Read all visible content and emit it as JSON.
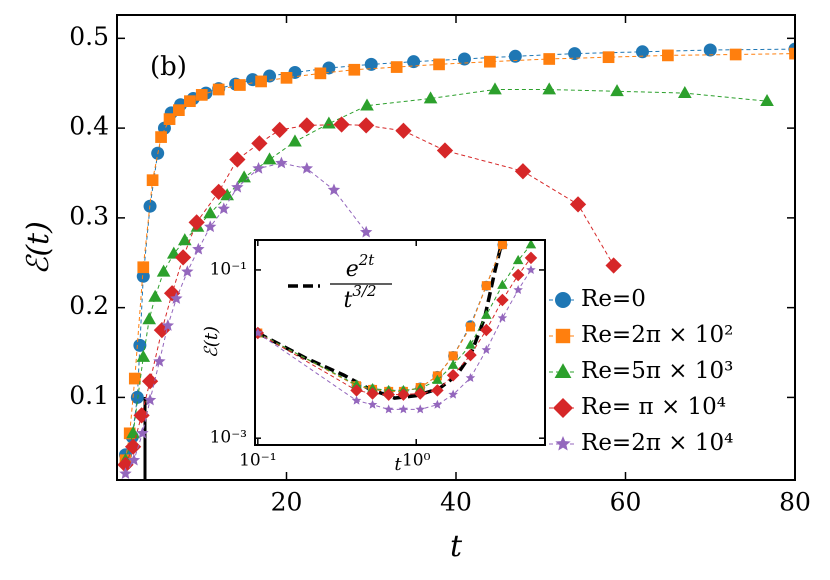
{
  "chart_data": [
    {
      "type": "line",
      "panel_label": "(b)",
      "x_label": "t",
      "y_label": "ℰ(t)",
      "xlim": [
        0,
        80
      ],
      "ylim": [
        0.008,
        0.526
      ],
      "xticks": [
        20,
        40,
        60,
        80
      ],
      "yticks": [
        0.1,
        0.2,
        0.3,
        0.4,
        0.5
      ],
      "legend": "lower right",
      "series": [
        {
          "name": "Re=0",
          "color": "#1f77b4",
          "marker": "circle",
          "x": [
            1,
            1.8,
            2.4,
            2.7,
            3.1,
            3.9,
            4.8,
            5.6,
            6.4,
            7.5,
            9,
            10.5,
            12,
            14,
            16,
            18,
            21,
            25,
            30,
            35,
            41,
            47,
            54,
            62,
            70,
            80
          ],
          "values": [
            0.036,
            0.056,
            0.1,
            0.158,
            0.235,
            0.313,
            0.372,
            0.4,
            0.417,
            0.426,
            0.433,
            0.439,
            0.444,
            0.449,
            0.454,
            0.458,
            0.462,
            0.467,
            0.471,
            0.474,
            0.477,
            0.48,
            0.483,
            0.485,
            0.487,
            0.488
          ]
        },
        {
          "name": "Re=2π × 10²",
          "color": "#ff7f0e",
          "marker": "square",
          "x": [
            1,
            1.5,
            2.1,
            3.1,
            4.2,
            5.2,
            6.2,
            7.3,
            8.6,
            10,
            12,
            14.5,
            17,
            20,
            24,
            28,
            33,
            38,
            44,
            51,
            58,
            65,
            73,
            80
          ],
          "values": [
            0.03,
            0.06,
            0.121,
            0.245,
            0.342,
            0.39,
            0.41,
            0.42,
            0.43,
            0.437,
            0.443,
            0.448,
            0.452,
            0.456,
            0.461,
            0.465,
            0.468,
            0.471,
            0.474,
            0.477,
            0.479,
            0.481,
            0.482,
            0.483
          ]
        },
        {
          "name": "Re=5π × 10³",
          "color": "#2ca02c",
          "marker": "triangle",
          "x": [
            1,
            1.9,
            3.1,
            3.8,
            4.5,
            5.5,
            6.7,
            8,
            9.5,
            11,
            13,
            15,
            18,
            21,
            25,
            29.5,
            37,
            44.6,
            51,
            59,
            67,
            76.7
          ],
          "values": [
            0.03,
            0.06,
            0.145,
            0.187,
            0.212,
            0.24,
            0.26,
            0.275,
            0.29,
            0.305,
            0.325,
            0.345,
            0.365,
            0.385,
            0.405,
            0.425,
            0.433,
            0.443,
            0.443,
            0.441,
            0.439,
            0.43
          ]
        },
        {
          "name": "Re= π × 10⁴",
          "color": "#d62728",
          "marker": "diamond",
          "x": [
            1,
            1.9,
            2.9,
            3.9,
            5.3,
            6.5,
            7.8,
            9.4,
            12,
            14.2,
            16.8,
            19.2,
            22.4,
            26.5,
            29.4,
            33.8,
            38.7,
            47.9,
            54.4,
            58.6
          ],
          "values": [
            0.025,
            0.045,
            0.08,
            0.118,
            0.175,
            0.216,
            0.256,
            0.295,
            0.329,
            0.365,
            0.383,
            0.398,
            0.403,
            0.404,
            0.403,
            0.397,
            0.375,
            0.352,
            0.315,
            0.247
          ]
        },
        {
          "name": "Re=2π × 10⁴",
          "color": "#9467bd",
          "marker": "star",
          "x": [
            1,
            2,
            3,
            3.9,
            5,
            6,
            7,
            8.3,
            9.6,
            11,
            12.6,
            14.2,
            16.7,
            19.4,
            22.4,
            25.6,
            29.4
          ],
          "values": [
            0.015,
            0.03,
            0.06,
            0.097,
            0.14,
            0.18,
            0.21,
            0.24,
            0.265,
            0.29,
            0.31,
            0.334,
            0.355,
            0.361,
            0.355,
            0.331,
            0.284
          ]
        }
      ]
    },
    {
      "type": "line",
      "xscale": "log",
      "yscale": "log",
      "x_label": "t",
      "y_label": "ℰ(t)",
      "xlim": [
        0.096,
        6.5
      ],
      "ylim": [
        0.00083,
        0.227
      ],
      "xticks": [
        {
          "value": 0.1,
          "label": "10⁻¹"
        },
        {
          "value": 1,
          "label": "10⁰"
        }
      ],
      "yticks": [
        {
          "value": 0.1,
          "label": "10⁻¹"
        },
        {
          "value": 0.001,
          "label": "10⁻³"
        }
      ],
      "x": [
        0.1,
        0.42,
        0.53,
        0.67,
        0.83,
        1.06,
        1.36,
        1.71,
        2.2,
        2.77,
        3.5,
        4.4,
        5.3
      ],
      "series": [
        {
          "color": "#1f77b4",
          "marker": "circle",
          "values": [
            0.0178,
            0.0042,
            0.0038,
            0.0036,
            0.0036,
            0.004,
            0.0055,
            0.0095,
            0.022,
            0.065,
            0.2,
            null,
            null
          ]
        },
        {
          "color": "#ff7f0e",
          "marker": "square",
          "values": [
            0.0178,
            0.0042,
            0.0038,
            0.0036,
            0.0036,
            0.004,
            0.0055,
            0.0095,
            0.021,
            0.065,
            0.2,
            null,
            null
          ]
        },
        {
          "color": "#2ca02c",
          "marker": "triangle",
          "values": [
            0.0178,
            0.0043,
            0.0039,
            0.0037,
            0.0037,
            0.0039,
            0.0049,
            0.0074,
            0.0128,
            0.029,
            0.066,
            0.13,
            0.2
          ]
        },
        {
          "color": "#d62728",
          "marker": "diamond",
          "values": [
            0.0178,
            0.0037,
            0.0034,
            0.0033,
            0.0033,
            0.0034,
            0.0037,
            0.0056,
            0.0097,
            0.0193,
            0.0439,
            0.087,
            0.139
          ]
        },
        {
          "color": "#9467bd",
          "marker": "star",
          "values": [
            0.0178,
            0.0028,
            0.0025,
            0.0022,
            0.0022,
            0.0022,
            0.0025,
            0.0033,
            0.0052,
            0.0112,
            0.0268,
            0.0578,
            0.1
          ]
        }
      ],
      "theory": {
        "color": "#000000",
        "x": [
          0.1,
          0.2,
          0.35,
          0.5,
          0.73,
          1.0,
          1.4,
          1.8,
          2.2,
          2.7,
          3.15,
          3.5
        ],
        "values": [
          0.0178,
          0.009,
          0.0056,
          0.0039,
          0.003,
          0.0032,
          0.0039,
          0.0056,
          0.0097,
          0.0268,
          0.1,
          0.227
        ],
        "label": {
          "base": "e",
          "base_sup": "2t",
          "denom": "t",
          "denom_sup": "3/2"
        }
      }
    }
  ]
}
